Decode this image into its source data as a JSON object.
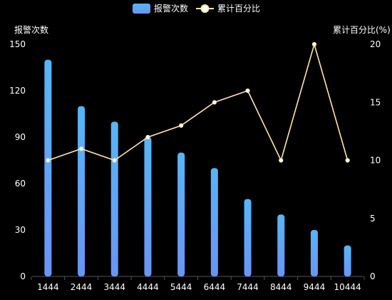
{
  "chart_data": {
    "type": "bar",
    "categories": [
      "1444",
      "2444",
      "3444",
      "4444",
      "5444",
      "6444",
      "7444",
      "8444",
      "9444",
      "10444"
    ],
    "series": [
      {
        "name": "报警次数",
        "type": "bar",
        "axis": "left",
        "values": [
          140,
          110,
          100,
          90,
          80,
          70,
          50,
          40,
          30,
          20
        ],
        "color": "#56b6f7",
        "gradient_end": "#6a94f5"
      },
      {
        "name": "累计百分比",
        "type": "line",
        "axis": "right",
        "values": [
          10,
          11,
          10,
          12,
          13,
          15,
          16,
          10,
          20,
          10
        ],
        "color": "#ffe6a8",
        "marker_fill": "#ffffff"
      }
    ],
    "y_left": {
      "label": "报警次数",
      "min": 0,
      "max": 150,
      "ticks": [
        0,
        30,
        60,
        90,
        120,
        150
      ]
    },
    "y_right": {
      "label": "累计百分比(%)",
      "min": 0,
      "max": 20,
      "ticks": [
        0,
        5,
        10,
        15,
        20
      ]
    },
    "grid": false,
    "legend": "top-center",
    "background": "#000000"
  }
}
